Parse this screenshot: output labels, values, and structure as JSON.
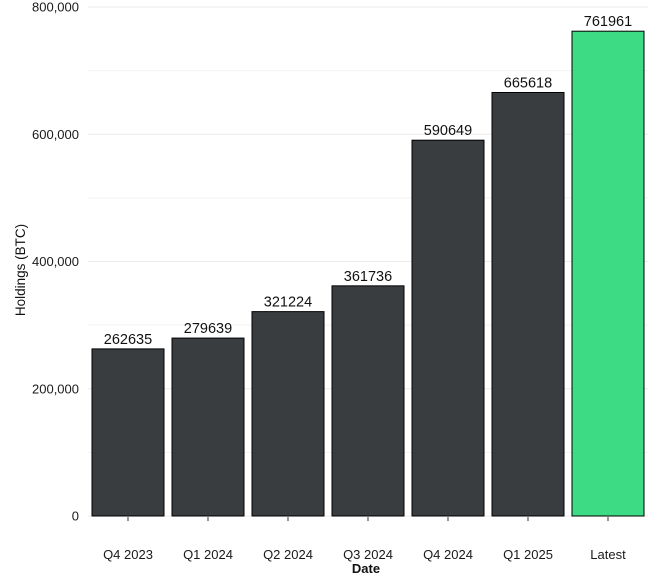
{
  "chart_data": {
    "type": "bar",
    "title": "",
    "xlabel": "Date",
    "ylabel": "Holdings (BTC)",
    "categories": [
      "Q4 2023",
      "Q1 2024",
      "Q2 2024",
      "Q3 2024",
      "Q4 2024",
      "Q1 2025",
      "Latest"
    ],
    "values": [
      262635,
      279639,
      321224,
      361736,
      590649,
      665618,
      761961
    ],
    "data_labels": [
      "262635",
      "279639",
      "321224",
      "361736",
      "590649",
      "665618",
      "761961"
    ],
    "ylim": [
      0,
      800000
    ],
    "yticks": [
      0,
      200000,
      400000,
      600000,
      800000
    ],
    "ytick_labels": [
      "0",
      "200,000",
      "400,000",
      "600,000",
      "800,000"
    ],
    "grid": true,
    "legend": "none",
    "colors": {
      "default_bar": "#3a3d40",
      "highlight_bar": "#3ddc84",
      "bar_outline": "#000000",
      "grid": "#ebebeb",
      "background": "#ffffff"
    },
    "highlight_category": "Latest"
  }
}
